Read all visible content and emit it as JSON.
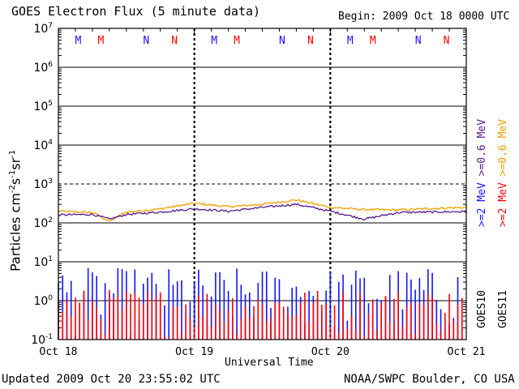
{
  "header": {
    "title": "GOES Electron Flux (5 minute data)",
    "begin": "Begin: 2009 Oct 18 0000 UTC"
  },
  "footer": {
    "updated": "Updated 2009 Oct 20 23:55:02 UTC",
    "credit": "NOAA/SWPC Boulder, CO USA"
  },
  "colors": {
    "blue": "#1414ff",
    "red": "#ff0000",
    "purple": "#5a1a8c",
    "orange": "#f0a000",
    "grid": "#000000"
  },
  "chart_data": {
    "type": "line",
    "title": "GOES Electron Flux (5 minute data)",
    "xlabel": "Universal Time",
    "ylabel": "Particles cm^-2 s^-1 sr^-1",
    "y_scale": "log",
    "ylim": [
      0.1,
      10000000
    ],
    "y_ticks": [
      {
        "base": "10",
        "exp": "-1"
      },
      {
        "base": "10",
        "exp": "0"
      },
      {
        "base": "10",
        "exp": "1"
      },
      {
        "base": "10",
        "exp": "2"
      },
      {
        "base": "10",
        "exp": "3"
      },
      {
        "base": "10",
        "exp": "4"
      },
      {
        "base": "10",
        "exp": "5"
      },
      {
        "base": "10",
        "exp": "6"
      },
      {
        "base": "10",
        "exp": "7"
      }
    ],
    "x_ticks": [
      "Oct 18",
      "Oct 19",
      "Oct 20",
      "Oct 21"
    ],
    "x_range_days": [
      0,
      3
    ],
    "thresholds": [
      1000
    ],
    "day_markers": [
      {
        "day": 0,
        "labels": [
          {
            "text": "M",
            "hour": 3.5,
            "color": "#1414ff"
          },
          {
            "text": "M",
            "hour": 7.5,
            "color": "#ff0000"
          },
          {
            "text": "N",
            "hour": 15.5,
            "color": "#1414ff"
          },
          {
            "text": "N",
            "hour": 20.5,
            "color": "#ff0000"
          }
        ]
      },
      {
        "day": 1,
        "labels": [
          {
            "text": "M",
            "hour": 3.5,
            "color": "#1414ff"
          },
          {
            "text": "M",
            "hour": 7.5,
            "color": "#ff0000"
          },
          {
            "text": "N",
            "hour": 15.5,
            "color": "#1414ff"
          },
          {
            "text": "N",
            "hour": 20.5,
            "color": "#ff0000"
          }
        ]
      },
      {
        "day": 2,
        "labels": [
          {
            "text": "M",
            "hour": 3.5,
            "color": "#1414ff"
          },
          {
            "text": "M",
            "hour": 7.5,
            "color": "#ff0000"
          },
          {
            "text": "N",
            "hour": 15.5,
            "color": "#1414ff"
          },
          {
            "text": "N",
            "hour": 20.5,
            "color": "#ff0000"
          }
        ]
      }
    ],
    "legend": {
      "position": "right",
      "goes10": {
        "title": "GOES10",
        "low": ">=0.6 MeV",
        "high": ">=2 MeV"
      },
      "goes11": {
        "title": "GOES11",
        "low": ">=0.6 MeV",
        "high": ">=2 MeV"
      },
      "entries": [
        {
          "text": ">=2 >=0.6 MeV",
          "sat": "GOES10"
        },
        {
          "text": ">=2 >=0.6 MeV",
          "sat": "GOES11"
        }
      ]
    },
    "series": [
      {
        "name": "GOES11 >=0.6 MeV",
        "color": "#f0a000",
        "style": "line",
        "t_hours": [
          0,
          6,
          9,
          12,
          18,
          24,
          30,
          36,
          42,
          48,
          54,
          60,
          66,
          72
        ],
        "values": [
          200,
          185,
          110,
          190,
          230,
          320,
          260,
          300,
          390,
          250,
          220,
          215,
          235,
          250
        ]
      },
      {
        "name": "GOES10 >=0.6 MeV",
        "color": "#5a1a8c",
        "style": "line",
        "t_hours": [
          0,
          6,
          9,
          12,
          18,
          24,
          30,
          36,
          42,
          48,
          54,
          60,
          66,
          72
        ],
        "values": [
          160,
          165,
          125,
          165,
          190,
          230,
          200,
          250,
          300,
          200,
          125,
          185,
          190,
          195
        ]
      },
      {
        "name": "GOES10 >=2 MeV",
        "color": "#1414ff",
        "style": "noise",
        "typical_range": [
          0.1,
          7.0
        ]
      },
      {
        "name": "GOES11 >=2 MeV",
        "color": "#ff0000",
        "style": "noise",
        "typical_range": [
          0.1,
          2.0
        ]
      }
    ]
  }
}
